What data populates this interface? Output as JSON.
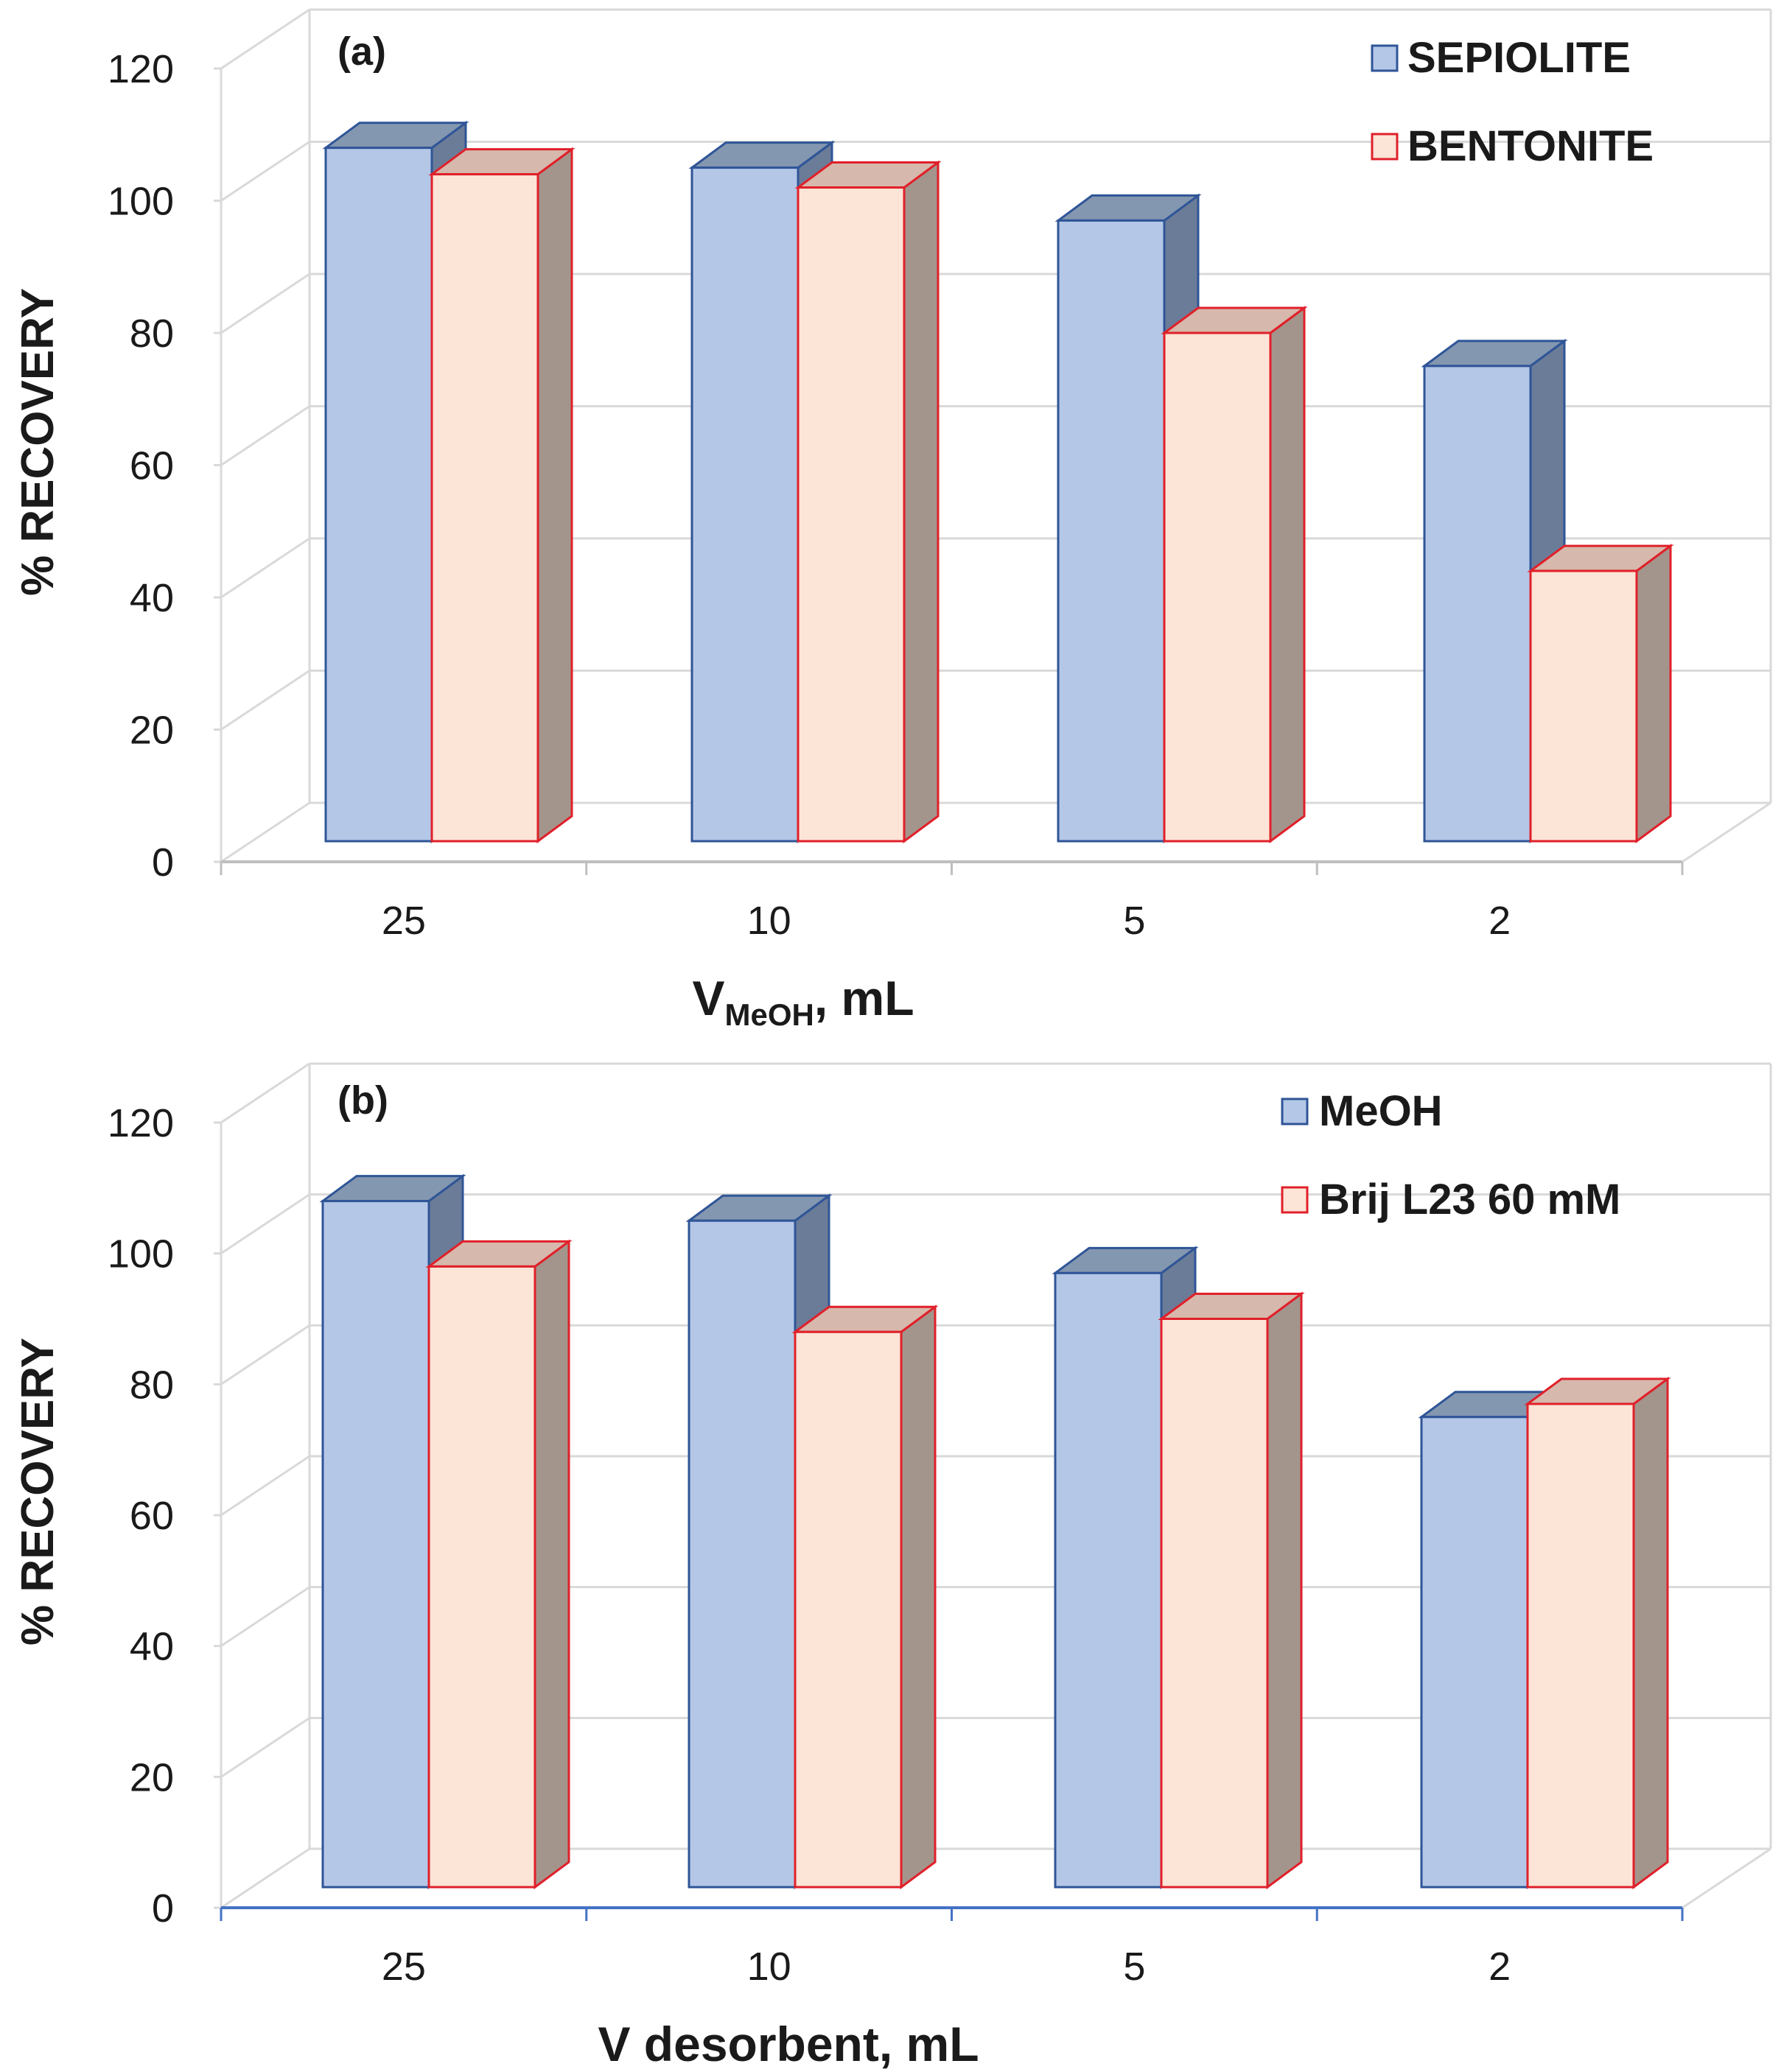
{
  "chart_data": [
    {
      "type": "bar",
      "panel_label": "(a)",
      "categories": [
        "25",
        "10",
        "5",
        "2"
      ],
      "series": [
        {
          "name": "SEPIOLITE",
          "values": [
            108,
            105,
            97,
            75
          ]
        },
        {
          "name": "BENTONITE",
          "values": [
            104,
            102,
            80,
            44
          ]
        }
      ],
      "xlabel_main": "V",
      "xlabel_sub": "MeOH",
      "xlabel_rest": ", mL",
      "ylabel": "% RECOVERY",
      "ylim": [
        0,
        120
      ],
      "yticks": [
        "0",
        "20",
        "40",
        "60",
        "80",
        "100",
        "120"
      ],
      "legend_position": "top-right",
      "grid": true
    },
    {
      "type": "bar",
      "panel_label": "(b)",
      "categories": [
        "25",
        "10",
        "5",
        "2"
      ],
      "series": [
        {
          "name": "MeOH",
          "values": [
            108,
            105,
            97,
            75
          ]
        },
        {
          "name": "Brij L23 60 mM",
          "values": [
            98,
            88,
            90,
            77
          ]
        }
      ],
      "xlabel_main": "V desorbent, mL",
      "xlabel_sub": "",
      "xlabel_rest": "",
      "ylabel": "% RECOVERY",
      "ylim": [
        0,
        120
      ],
      "yticks": [
        "0",
        "20",
        "40",
        "60",
        "80",
        "100",
        "120"
      ],
      "legend_position": "top-right",
      "grid": true
    }
  ],
  "colors": {
    "series1_fill": "#b4c7e7",
    "series1_top": "#8497b0",
    "series1_side": "#6b7c98",
    "series1_stroke": "#2f5597",
    "series2_fill": "#fce4d6",
    "series2_top": "#d6b8ac",
    "series2_side": "#a4958c",
    "series2_stroke": "#e0202a",
    "grid": "#d9d9d9",
    "axis": "#bfbfbf",
    "axis_b": "#4472c4"
  }
}
